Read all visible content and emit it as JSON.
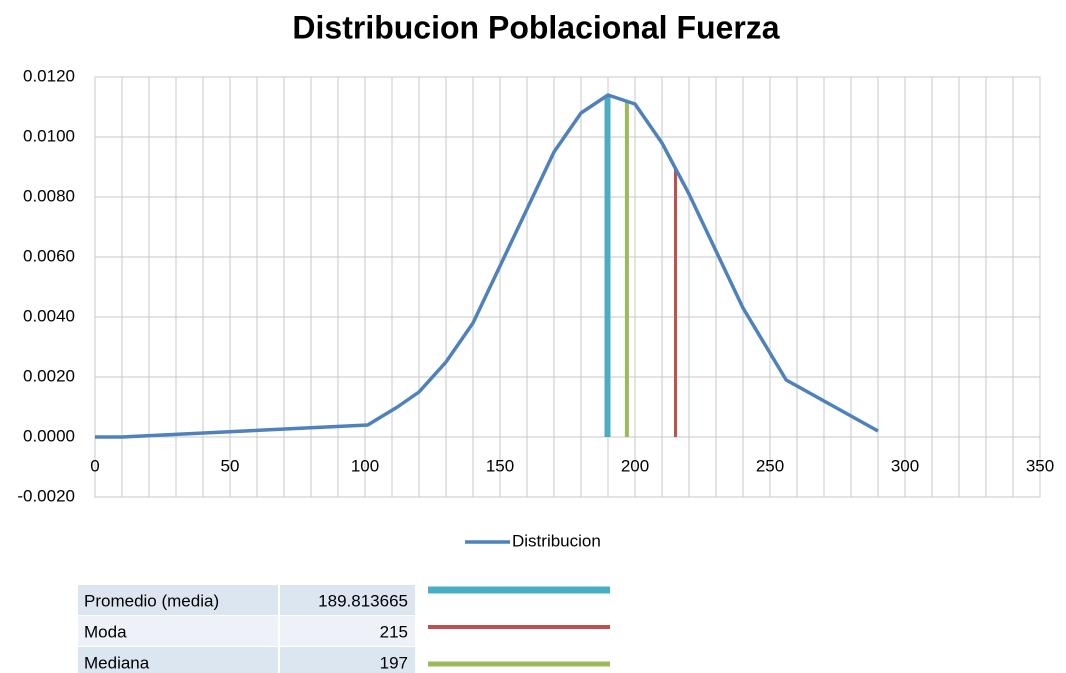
{
  "chart_data": {
    "type": "line",
    "title": "Distribucion Poblacional Fuerza",
    "x": [
      0,
      10,
      101,
      112,
      120,
      130,
      140,
      150,
      160,
      170,
      180,
      190,
      200,
      210,
      220,
      230,
      240,
      250,
      256,
      290
    ],
    "series": [
      {
        "name": "Distribucion",
        "color": "#4f81bd",
        "values": [
          0,
          0,
          0.0004,
          0.001,
          0.0015,
          0.0025,
          0.0038,
          0.0057,
          0.0076,
          0.0095,
          0.0108,
          0.0114,
          0.0111,
          0.0098,
          0.0081,
          0.0062,
          0.0043,
          0.0028,
          0.0019,
          0.0002
        ]
      }
    ],
    "xlim": [
      0,
      350
    ],
    "xticks": [
      0,
      50,
      100,
      150,
      200,
      250,
      300,
      350
    ],
    "ylim": [
      -0.002,
      0.012
    ],
    "yticks": [
      {
        "value": -0.002,
        "label": "-0.0020"
      },
      {
        "value": 0,
        "label": "0.0000"
      },
      {
        "value": 0.002,
        "label": "0.0020"
      },
      {
        "value": 0.004,
        "label": "0.0040"
      },
      {
        "value": 0.006,
        "label": "0.0060"
      },
      {
        "value": 0.008,
        "label": "0.0080"
      },
      {
        "value": 0.01,
        "label": "0.0100"
      },
      {
        "value": 0.012,
        "label": "0.0120"
      }
    ],
    "grid": true,
    "legend": "bottom",
    "markers": [
      {
        "name": "Promedio (media)",
        "value": 189.813665,
        "color": "#4bacc6"
      },
      {
        "name": "Moda",
        "value": 215,
        "color": "#c0504d"
      },
      {
        "name": "Mediana",
        "value": 197,
        "color": "#9bbb59"
      }
    ]
  }
}
